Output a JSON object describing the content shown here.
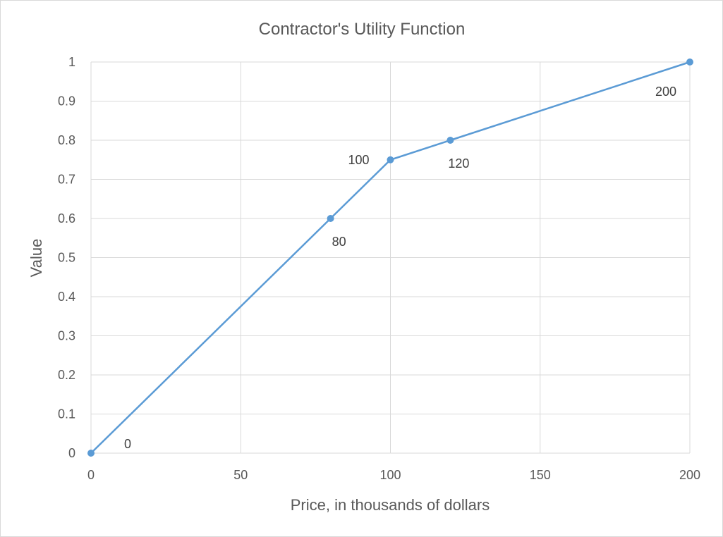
{
  "chart_data": {
    "type": "line",
    "title": "Contractor's  Utility Function",
    "xlabel": "Price, in thousands of dollars",
    "ylabel": "Value",
    "xlim": [
      0,
      200
    ],
    "ylim": [
      0,
      1
    ],
    "x_ticks": [
      0,
      50,
      100,
      150,
      200
    ],
    "y_ticks": [
      0,
      0.1,
      0.2,
      0.3,
      0.4,
      0.5,
      0.6,
      0.7,
      0.8,
      0.9,
      1
    ],
    "grid": true,
    "legend": "none",
    "series": [
      {
        "color": "#5b9bd5",
        "x": [
          0,
          80,
          100,
          120,
          200
        ],
        "y": [
          0,
          0.6,
          0.75,
          0.8,
          1
        ],
        "point_labels": [
          "0",
          "80",
          "100",
          "120",
          "200"
        ],
        "label_positions": [
          "right",
          "below",
          "left",
          "below",
          "below"
        ]
      }
    ]
  }
}
